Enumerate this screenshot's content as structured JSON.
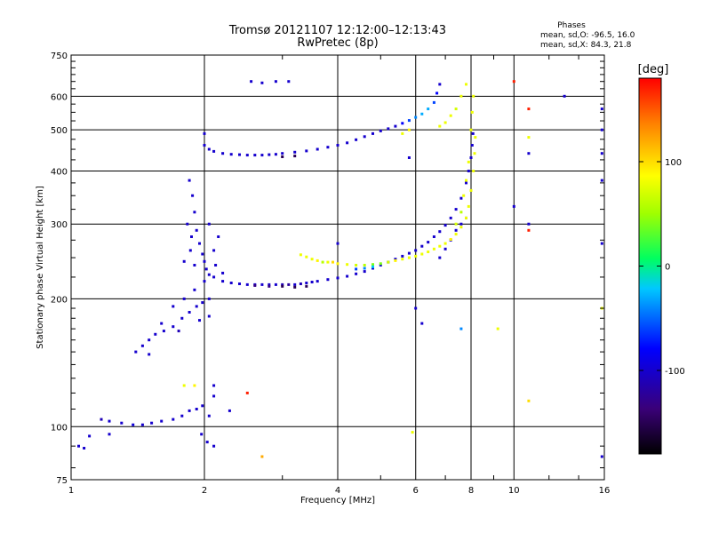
{
  "chart_data": {
    "type": "scatter",
    "title": "Tromsø 20121107 12:12:00–12:13:43",
    "subtitle": "RwPretec (8p)",
    "stats": {
      "heading": "Phases",
      "o_line": "mean, sd,O: -96.5, 16.0",
      "x_line": "mean, sd,X:  84.3, 21.8"
    },
    "xlabel": "Frequency [MHz]",
    "ylabel": "Stationary phase Virtual Height [km]",
    "x_scale": "log",
    "y_scale": "log",
    "xlim": [
      1,
      16
    ],
    "ylim": [
      75,
      750
    ],
    "x_ticks": [
      {
        "value": 1,
        "label": "1"
      },
      {
        "value": 2,
        "label": "2"
      },
      {
        "value": 4,
        "label": "4"
      },
      {
        "value": 6,
        "label": "6"
      },
      {
        "value": 8,
        "label": "8"
      },
      {
        "value": 10,
        "label": "10"
      },
      {
        "value": 16,
        "label": "16"
      }
    ],
    "y_ticks": [
      {
        "value": 75,
        "label": "75"
      },
      {
        "value": 100,
        "label": "100"
      },
      {
        "value": 200,
        "label": "200"
      },
      {
        "value": 300,
        "label": "300"
      },
      {
        "value": 400,
        "label": "400"
      },
      {
        "value": 500,
        "label": "500"
      },
      {
        "value": 600,
        "label": "600"
      },
      {
        "value": 750,
        "label": "750"
      }
    ],
    "grid": true,
    "colorbar": {
      "label": "[deg]",
      "range": [
        -180,
        180
      ],
      "ticks": [
        {
          "value": 100,
          "label": "100"
        },
        {
          "value": 0,
          "label": "0"
        },
        {
          "value": -100,
          "label": "-100"
        }
      ]
    },
    "series": [
      {
        "points": [
          [
            1.04,
            90,
            -100
          ],
          [
            1.07,
            89,
            -100
          ],
          [
            1.1,
            95,
            -100
          ],
          [
            1.17,
            104,
            -110
          ],
          [
            1.22,
            103,
            -100
          ],
          [
            1.3,
            102,
            -100
          ],
          [
            1.38,
            101,
            -95
          ],
          [
            1.45,
            101,
            -100
          ],
          [
            1.52,
            102,
            -100
          ],
          [
            1.6,
            103,
            -100
          ],
          [
            1.7,
            104,
            -100
          ],
          [
            1.78,
            106,
            -100
          ],
          [
            1.85,
            109,
            -100
          ],
          [
            1.92,
            110,
            -100
          ],
          [
            1.98,
            112,
            -100
          ],
          [
            2.05,
            106,
            -100
          ],
          [
            1.97,
            96,
            -100
          ],
          [
            2.03,
            92,
            -100
          ],
          [
            2.1,
            118,
            -100
          ],
          [
            2.28,
            109,
            -100
          ],
          [
            2.1,
            90,
            -100
          ]
        ]
      },
      {
        "points": [
          [
            1.4,
            150,
            -100
          ],
          [
            1.45,
            155,
            -100
          ],
          [
            1.5,
            160,
            -100
          ],
          [
            1.55,
            165,
            -100
          ],
          [
            1.62,
            168,
            -100
          ],
          [
            1.7,
            172,
            -100
          ],
          [
            1.78,
            180,
            -100
          ],
          [
            1.85,
            186,
            -100
          ],
          [
            1.92,
            192,
            -100
          ],
          [
            1.98,
            196,
            -100
          ],
          [
            2.05,
            200,
            -100
          ],
          [
            1.6,
            175,
            -100
          ],
          [
            1.7,
            192,
            -100
          ],
          [
            1.8,
            200,
            -100
          ],
          [
            1.9,
            210,
            -100
          ],
          [
            2.0,
            220,
            -100
          ],
          [
            2.05,
            182,
            -100
          ],
          [
            1.5,
            148,
            -100
          ],
          [
            1.75,
            168,
            -110
          ],
          [
            1.95,
            178,
            -100
          ]
        ]
      },
      {
        "points": [
          [
            1.85,
            380,
            -100
          ],
          [
            1.88,
            350,
            -100
          ],
          [
            1.9,
            320,
            -100
          ],
          [
            1.92,
            290,
            -100
          ],
          [
            1.95,
            270,
            -100
          ],
          [
            1.98,
            255,
            -100
          ],
          [
            2.0,
            245,
            -100
          ],
          [
            2.02,
            235,
            -100
          ],
          [
            1.87,
            280,
            -100
          ],
          [
            1.86,
            260,
            -100
          ],
          [
            1.9,
            240,
            -100
          ],
          [
            2.05,
            300,
            -100
          ],
          [
            2.1,
            260,
            -100
          ],
          [
            2.12,
            240,
            -100
          ],
          [
            2.2,
            230,
            -100
          ],
          [
            1.8,
            245,
            -100
          ],
          [
            1.83,
            300,
            -100
          ],
          [
            2.15,
            280,
            -100
          ]
        ]
      },
      {
        "points": [
          [
            2.05,
            228,
            -100
          ],
          [
            2.1,
            225,
            -100
          ],
          [
            2.2,
            220,
            -100
          ],
          [
            2.3,
            218,
            -100
          ],
          [
            2.4,
            217,
            -100
          ],
          [
            2.5,
            216,
            -100
          ],
          [
            2.6,
            216,
            -100
          ],
          [
            2.7,
            216,
            -100
          ],
          [
            2.8,
            216,
            -100
          ],
          [
            2.9,
            216,
            -100
          ],
          [
            3.0,
            216,
            -110
          ],
          [
            3.1,
            216,
            -120
          ],
          [
            3.2,
            216,
            -100
          ],
          [
            3.3,
            217,
            -110
          ],
          [
            3.4,
            218,
            -100
          ],
          [
            3.5,
            219,
            -100
          ],
          [
            3.6,
            220,
            -100
          ],
          [
            3.8,
            222,
            -100
          ],
          [
            4.0,
            224,
            -100
          ],
          [
            4.2,
            226,
            -100
          ],
          [
            4.4,
            229,
            -100
          ],
          [
            4.6,
            232,
            -100
          ],
          [
            4.8,
            236,
            -100
          ],
          [
            5.0,
            240,
            -100
          ],
          [
            5.2,
            244,
            -100
          ],
          [
            5.4,
            248,
            -100
          ],
          [
            5.6,
            252,
            -100
          ],
          [
            5.8,
            256,
            -100
          ],
          [
            6.0,
            260,
            -100
          ],
          [
            6.2,
            266,
            -100
          ],
          [
            6.4,
            272,
            -100
          ],
          [
            6.6,
            280,
            -100
          ],
          [
            6.8,
            288,
            -100
          ],
          [
            7.0,
            298,
            -100
          ],
          [
            7.2,
            310,
            -100
          ],
          [
            7.4,
            325,
            -100
          ],
          [
            7.6,
            345,
            -100
          ],
          [
            7.8,
            375,
            -100
          ],
          [
            7.9,
            400,
            -100
          ],
          [
            8.0,
            430,
            -100
          ],
          [
            8.05,
            460,
            -100
          ],
          [
            8.08,
            490,
            -100
          ],
          [
            6.8,
            250,
            -100
          ],
          [
            7.0,
            262,
            -100
          ],
          [
            7.2,
            275,
            -100
          ],
          [
            7.4,
            290,
            -100
          ],
          [
            7.6,
            300,
            -100
          ],
          [
            7.8,
            310,
            -100
          ],
          [
            3.0,
            214,
            -150
          ],
          [
            3.2,
            213,
            -150
          ],
          [
            3.4,
            214,
            -150
          ],
          [
            2.6,
            215,
            -130
          ],
          [
            2.8,
            214,
            -130
          ]
        ]
      },
      {
        "points": [
          [
            3.3,
            254,
            80
          ],
          [
            3.4,
            251,
            80
          ],
          [
            3.5,
            248,
            80
          ],
          [
            3.6,
            246,
            90
          ],
          [
            3.7,
            244,
            60
          ],
          [
            3.8,
            244,
            80
          ],
          [
            3.9,
            244,
            100
          ],
          [
            4.0,
            242,
            90
          ],
          [
            4.2,
            241,
            80
          ],
          [
            4.4,
            240,
            70
          ],
          [
            4.6,
            240,
            60
          ],
          [
            4.8,
            241,
            40
          ],
          [
            5.0,
            242,
            40
          ],
          [
            5.2,
            244,
            70
          ],
          [
            5.4,
            246,
            90
          ],
          [
            5.6,
            248,
            80
          ],
          [
            5.8,
            250,
            80
          ],
          [
            6.0,
            252,
            80
          ],
          [
            6.2,
            255,
            80
          ],
          [
            6.4,
            258,
            80
          ],
          [
            6.6,
            262,
            80
          ],
          [
            6.8,
            266,
            80
          ],
          [
            7.0,
            270,
            80
          ],
          [
            7.2,
            276,
            90
          ],
          [
            7.4,
            284,
            80
          ],
          [
            7.6,
            295,
            80
          ],
          [
            7.8,
            310,
            80
          ],
          [
            7.9,
            330,
            80
          ],
          [
            8.0,
            360,
            80
          ],
          [
            8.1,
            400,
            80
          ],
          [
            8.15,
            440,
            80
          ],
          [
            8.18,
            480,
            80
          ],
          [
            7.7,
            350,
            80
          ],
          [
            7.8,
            380,
            80
          ],
          [
            7.9,
            420,
            80
          ],
          [
            8.0,
            500,
            80
          ],
          [
            8.05,
            550,
            80
          ],
          [
            8.1,
            600,
            80
          ],
          [
            7.6,
            320,
            60
          ],
          [
            7.4,
            300,
            70
          ],
          [
            4.4,
            235,
            -60
          ],
          [
            4.6,
            236,
            -40
          ],
          [
            4.8,
            238,
            -20
          ]
        ]
      },
      {
        "points": [
          [
            2.0,
            460,
            -100
          ],
          [
            2.05,
            450,
            -100
          ],
          [
            2.1,
            445,
            -100
          ],
          [
            2.2,
            440,
            -100
          ],
          [
            2.3,
            438,
            -100
          ],
          [
            2.4,
            437,
            -100
          ],
          [
            2.5,
            436,
            -100
          ],
          [
            2.6,
            436,
            -100
          ],
          [
            2.7,
            436,
            -100
          ],
          [
            2.8,
            437,
            -100
          ],
          [
            2.9,
            438,
            -100
          ],
          [
            3.0,
            440,
            -100
          ],
          [
            3.2,
            443,
            -100
          ],
          [
            3.4,
            446,
            -100
          ],
          [
            3.6,
            450,
            -100
          ],
          [
            3.8,
            455,
            -100
          ],
          [
            4.0,
            460,
            -100
          ],
          [
            4.2,
            466,
            -100
          ],
          [
            4.4,
            474,
            -100
          ],
          [
            4.6,
            482,
            -100
          ],
          [
            4.8,
            490,
            -100
          ],
          [
            5.0,
            497,
            -100
          ],
          [
            5.2,
            503,
            -100
          ],
          [
            5.4,
            510,
            -100
          ],
          [
            5.6,
            518,
            -80
          ],
          [
            5.8,
            526,
            -60
          ],
          [
            6.0,
            535,
            -40
          ],
          [
            6.2,
            545,
            -30
          ],
          [
            6.4,
            560,
            -30
          ],
          [
            6.6,
            580,
            -60
          ],
          [
            6.7,
            610,
            -80
          ],
          [
            6.8,
            640,
            -100
          ],
          [
            2.0,
            490,
            -100
          ],
          [
            3.0,
            432,
            -150
          ],
          [
            3.2,
            434,
            -150
          ]
        ]
      },
      {
        "points": [
          [
            6.8,
            510,
            80
          ],
          [
            7.0,
            520,
            80
          ],
          [
            7.2,
            540,
            80
          ],
          [
            7.4,
            560,
            70
          ],
          [
            7.6,
            600,
            80
          ],
          [
            7.8,
            640,
            80
          ],
          [
            5.6,
            490,
            80
          ],
          [
            5.8,
            500,
            90
          ]
        ]
      },
      {
        "points": [
          [
            2.55,
            650,
            -100
          ],
          [
            2.7,
            645,
            -100
          ],
          [
            2.9,
            650,
            -100
          ],
          [
            3.1,
            650,
            -100
          ],
          [
            1.8,
            125,
            80
          ],
          [
            1.9,
            125,
            90
          ],
          [
            2.5,
            120,
            170
          ],
          [
            2.1,
            125,
            -100
          ],
          [
            4.0,
            270,
            -100
          ],
          [
            5.8,
            430,
            -100
          ],
          [
            6.0,
            190,
            -100
          ],
          [
            6.2,
            175,
            -100
          ],
          [
            7.6,
            170,
            -40
          ],
          [
            9.2,
            170,
            80
          ],
          [
            10.0,
            330,
            -100
          ],
          [
            10.0,
            650,
            170
          ],
          [
            10.8,
            560,
            170
          ],
          [
            10.8,
            480,
            80
          ],
          [
            10.8,
            440,
            -100
          ],
          [
            10.8,
            300,
            -100
          ],
          [
            10.8,
            290,
            170
          ],
          [
            10.8,
            115,
            100
          ],
          [
            13.0,
            600,
            -100
          ],
          [
            15.8,
            560,
            -100
          ],
          [
            15.8,
            500,
            -100
          ],
          [
            15.8,
            440,
            -100
          ],
          [
            15.8,
            380,
            -100
          ],
          [
            15.8,
            270,
            -100
          ],
          [
            15.8,
            190,
            80
          ],
          [
            15.8,
            85,
            -100
          ],
          [
            2.7,
            85,
            120
          ],
          [
            5.9,
            97,
            80
          ],
          [
            1.22,
            96,
            -100
          ]
        ]
      }
    ]
  }
}
